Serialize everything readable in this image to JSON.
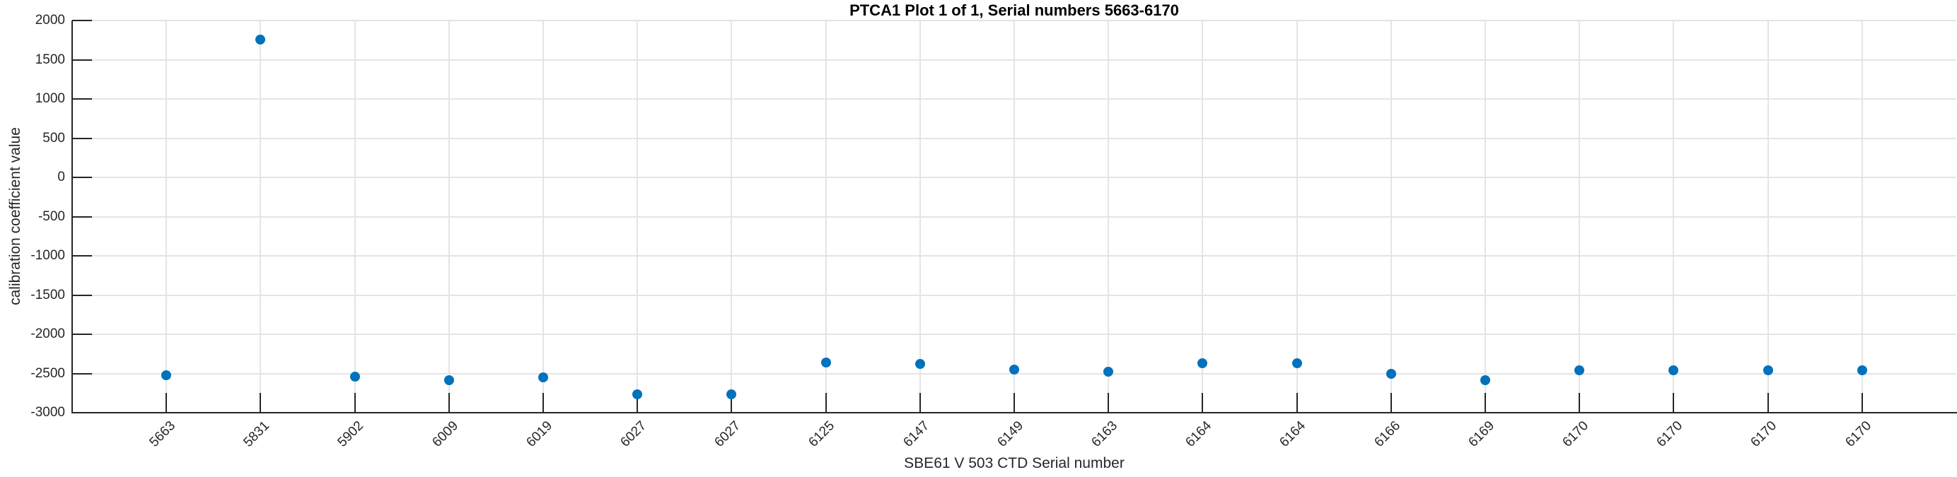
{
  "chart_data": {
    "type": "scatter",
    "title": "PTCA1 Plot 1 of 1, Serial numbers 5663-6170",
    "xlabel": "SBE61 V 503 CTD Serial number",
    "ylabel": "calibration coefficient value",
    "categories": [
      "5663",
      "5831",
      "5902",
      "6009",
      "6019",
      "6027",
      "6027",
      "6125",
      "6147",
      "6149",
      "6163",
      "6164",
      "6164",
      "6166",
      "6169",
      "6170",
      "6170",
      "6170",
      "6170"
    ],
    "values": [
      -2520,
      1760,
      -2540,
      -2590,
      -2550,
      -2770,
      -2770,
      -2360,
      -2380,
      -2450,
      -2480,
      -2370,
      -2370,
      -2500,
      -2590,
      -2455,
      -2455,
      -2455,
      -2455
    ],
    "ylim": [
      -3000,
      2000
    ],
    "ytick_labels": [
      "2000",
      "1500",
      "1000",
      "500",
      "0",
      "-500",
      "-1000",
      "-1500",
      "-2000",
      "-2500",
      "-3000"
    ],
    "yticks": [
      2000,
      1500,
      1000,
      500,
      0,
      -500,
      -1000,
      -1500,
      -2000,
      -2500,
      -3000
    ],
    "grid": true,
    "legend": "none",
    "marker_shape": "circle",
    "marker_color": "#0072BD",
    "axis_color": "#262626",
    "grid_color": "#e4e4e4"
  }
}
